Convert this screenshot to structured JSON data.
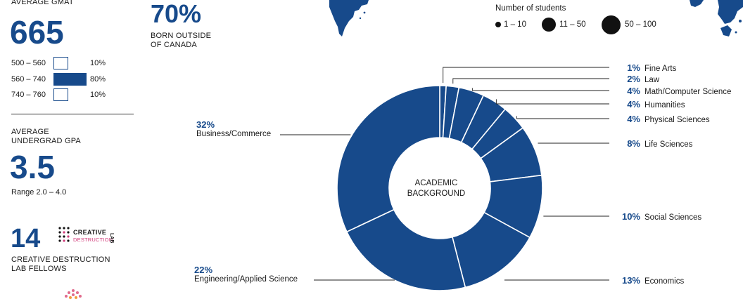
{
  "gmat": {
    "label": "AVERAGE GMAT",
    "value": "665",
    "rows": [
      {
        "range": "500 – 560",
        "pct": "10%",
        "fraction": 0.1
      },
      {
        "range": "560 – 740",
        "pct": "80%",
        "fraction": 0.8
      },
      {
        "range": "740 – 760",
        "pct": "10%",
        "fraction": 0.1
      }
    ]
  },
  "gpa": {
    "label_line1": "AVERAGE",
    "label_line2": "UNDERGRAD GPA",
    "value": "3.5",
    "range": "Range 2.0 – 4.0"
  },
  "cdl": {
    "value": "14",
    "label_line1": "CREATIVE DESTRUCTION",
    "label_line2": "LAB FELLOWS",
    "logo_line1": "CREATIVE",
    "logo_line2": "DESTRUCTION",
    "logo_side": "LAB"
  },
  "born": {
    "value": "70%",
    "label_line1": "BORN OUTSIDE",
    "label_line2": "OF CANADA"
  },
  "students_legend": {
    "title": "Number of students",
    "items": [
      {
        "label": "1 – 10"
      },
      {
        "label": "11 – 50"
      },
      {
        "label": "50 – 100"
      }
    ]
  },
  "donut": {
    "center_line1": "ACADEMIC",
    "center_line2": "BACKGROUND",
    "color": "#174a8b",
    "segments": [
      {
        "pct": "1%",
        "label": "Fine Arts",
        "value": 1
      },
      {
        "pct": "2%",
        "label": "Law",
        "value": 2
      },
      {
        "pct": "4%",
        "label": "Math/Computer Science",
        "value": 4
      },
      {
        "pct": "4%",
        "label": "Humanities",
        "value": 4
      },
      {
        "pct": "4%",
        "label": "Physical Sciences",
        "value": 4
      },
      {
        "pct": "8%",
        "label": "Life Sciences",
        "value": 8
      },
      {
        "pct": "10%",
        "label": "Social Sciences",
        "value": 10
      },
      {
        "pct": "13%",
        "label": "Economics",
        "value": 13
      },
      {
        "pct": "22%",
        "label": "Engineering/Applied Science",
        "value": 22
      },
      {
        "pct": "32%",
        "label": "Business/Commerce",
        "value": 32
      }
    ]
  }
}
